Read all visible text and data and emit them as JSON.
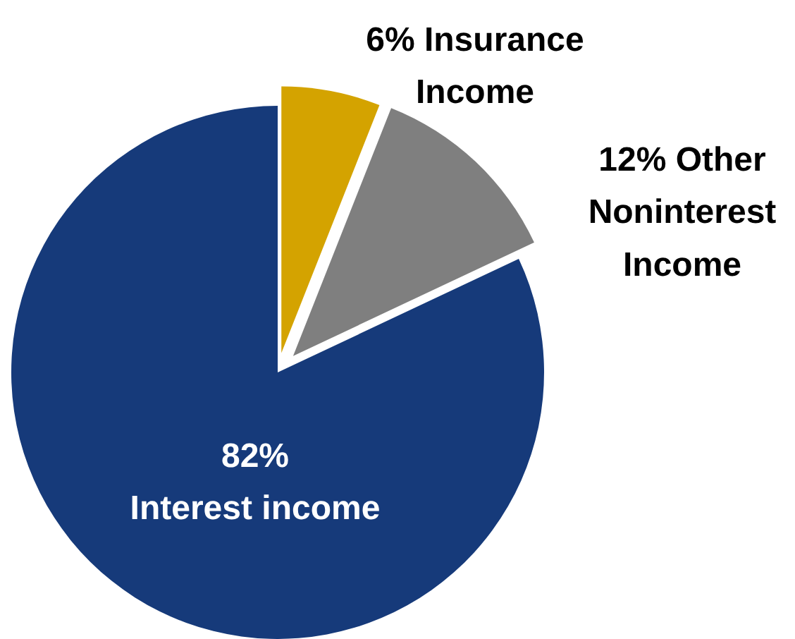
{
  "chart_data": {
    "type": "pie",
    "categories": [
      "Insurance Income",
      "Other Noninterest Income",
      "Interest income"
    ],
    "values": [
      6,
      12,
      82
    ],
    "value_labels": [
      "6%",
      "12%",
      "82%"
    ],
    "colors": [
      "#d4a300",
      "#7f7f7f",
      "#163a7a"
    ],
    "legend": false
  }
}
